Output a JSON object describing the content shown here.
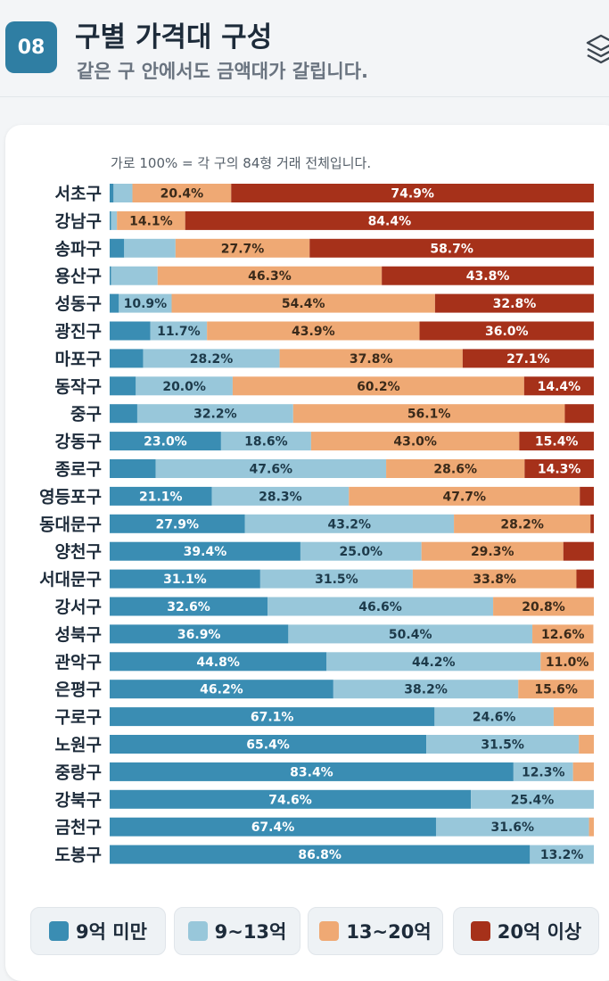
{
  "header": {
    "badge": "08",
    "title": "구별 가격대 구성",
    "subtitle": "같은 구 안에서도 금액대가 갈립니다.",
    "icon": "layers-icon"
  },
  "note": "가로 100% = 각 구의 84형 거래 전체입니다.",
  "legend": [
    {
      "label": "9억 미만",
      "color": "#3a8db3"
    },
    {
      "label": "9~13억",
      "color": "#98c7da"
    },
    {
      "label": "13~20억",
      "color": "#efa974"
    },
    {
      "label": "20억 이상",
      "color": "#a6311a"
    }
  ],
  "chart_data": {
    "type": "bar",
    "stacked": true,
    "orientation": "horizontal",
    "xlim": [
      0,
      100
    ],
    "unit": "%",
    "categories": [
      "서초구",
      "강남구",
      "송파구",
      "용산구",
      "성동구",
      "광진구",
      "마포구",
      "동작구",
      "중구",
      "강동구",
      "종로구",
      "영등포구",
      "동대문구",
      "양천구",
      "서대문구",
      "강서구",
      "성북구",
      "관악구",
      "은평구",
      "구로구",
      "노원구",
      "중랑구",
      "강북구",
      "금천구",
      "도봉구"
    ],
    "series": [
      {
        "name": "9억 미만",
        "values": [
          0.8,
          0.3,
          3.0,
          0.3,
          1.9,
          8.4,
          6.9,
          5.4,
          5.7,
          23.0,
          9.5,
          21.1,
          27.9,
          39.4,
          31.1,
          32.6,
          36.9,
          44.8,
          46.2,
          67.1,
          65.4,
          83.4,
          74.6,
          67.4,
          86.8
        ]
      },
      {
        "name": "9~13억",
        "values": [
          3.9,
          1.2,
          10.6,
          9.6,
          10.9,
          11.7,
          28.2,
          20.0,
          32.2,
          18.6,
          47.6,
          28.3,
          43.2,
          25.0,
          31.5,
          46.6,
          50.4,
          44.2,
          38.2,
          24.6,
          31.5,
          12.3,
          25.4,
          31.6,
          13.2
        ]
      },
      {
        "name": "13~20억",
        "values": [
          20.4,
          14.1,
          27.7,
          46.3,
          54.4,
          43.9,
          37.8,
          60.2,
          56.1,
          43.0,
          28.6,
          47.7,
          28.2,
          29.3,
          33.8,
          20.8,
          12.6,
          11.0,
          15.6,
          8.3,
          3.1,
          4.3,
          0.0,
          1.0,
          0.0
        ]
      },
      {
        "name": "20억 이상",
        "values": [
          74.9,
          84.4,
          58.7,
          43.8,
          32.8,
          36.0,
          27.1,
          14.4,
          6.0,
          15.4,
          14.3,
          2.9,
          0.7,
          6.3,
          3.6,
          0.0,
          0.0,
          0.0,
          0.0,
          0.0,
          0.0,
          0.0,
          0.0,
          0.0,
          0.0
        ]
      }
    ],
    "labels": [
      [
        null,
        null,
        "20.4%",
        "74.9%"
      ],
      [
        null,
        null,
        "14.1%",
        "84.4%"
      ],
      [
        null,
        null,
        "27.7%",
        "58.7%"
      ],
      [
        null,
        null,
        "46.3%",
        "43.8%"
      ],
      [
        null,
        "10.9%",
        "54.4%",
        "32.8%"
      ],
      [
        null,
        "11.7%",
        "43.9%",
        "36.0%"
      ],
      [
        null,
        "28.2%",
        "37.8%",
        "27.1%"
      ],
      [
        null,
        "20.0%",
        "60.2%",
        "14.4%"
      ],
      [
        null,
        "32.2%",
        "56.1%",
        null
      ],
      [
        "23.0%",
        "18.6%",
        "43.0%",
        "15.4%"
      ],
      [
        null,
        "47.6%",
        "28.6%",
        "14.3%"
      ],
      [
        "21.1%",
        "28.3%",
        "47.7%",
        null
      ],
      [
        "27.9%",
        "43.2%",
        "28.2%",
        null
      ],
      [
        "39.4%",
        "25.0%",
        "29.3%",
        null
      ],
      [
        "31.1%",
        "31.5%",
        "33.8%",
        null
      ],
      [
        "32.6%",
        "46.6%",
        "20.8%",
        null
      ],
      [
        "36.9%",
        "50.4%",
        "12.6%",
        null
      ],
      [
        "44.8%",
        "44.2%",
        "11.0%",
        null
      ],
      [
        "46.2%",
        "38.2%",
        "15.6%",
        null
      ],
      [
        "67.1%",
        "24.6%",
        null,
        null
      ],
      [
        "65.4%",
        "31.5%",
        null,
        null
      ],
      [
        "83.4%",
        "12.3%",
        null,
        null
      ],
      [
        "74.6%",
        "25.4%",
        null,
        null
      ],
      [
        "67.4%",
        "31.6%",
        null,
        null
      ],
      [
        "86.8%",
        "13.2%",
        null,
        null
      ]
    ]
  }
}
